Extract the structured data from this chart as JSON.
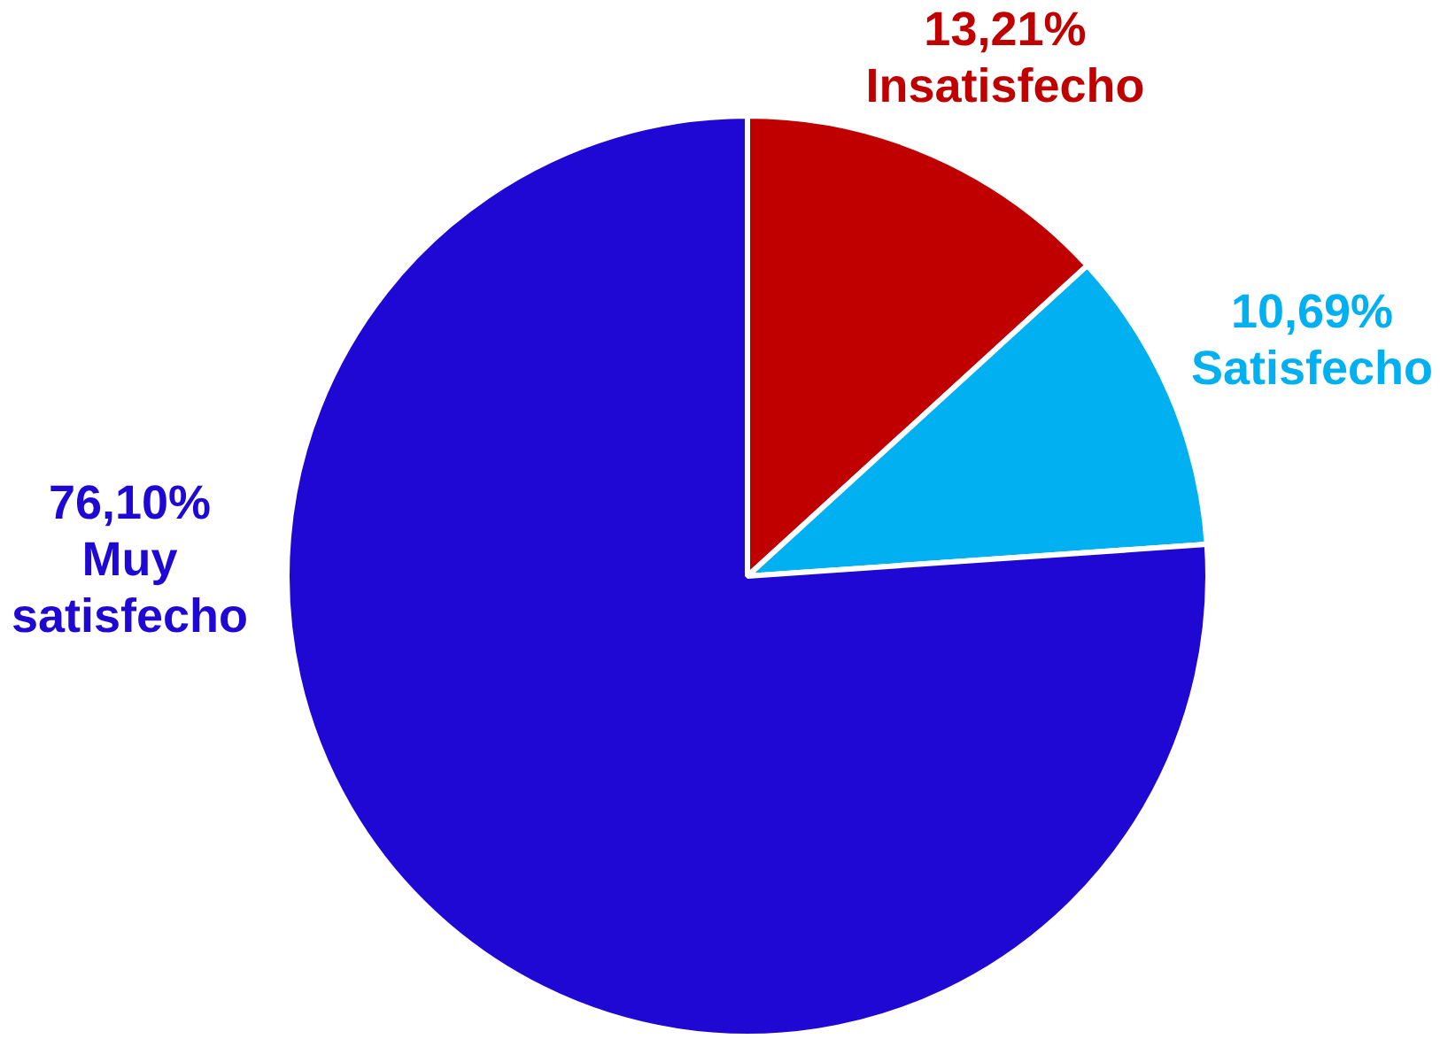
{
  "chart_data": {
    "type": "pie",
    "categories": [
      "Insatisfecho",
      "Satisfecho",
      "Muy satisfecho"
    ],
    "values": [
      13.21,
      10.69,
      76.1
    ],
    "colors": [
      "#c00000",
      "#00b0f0",
      "#2008d4"
    ],
    "value_labels": [
      "13,21%",
      "10,69%",
      "76,10%"
    ],
    "legend": false
  }
}
